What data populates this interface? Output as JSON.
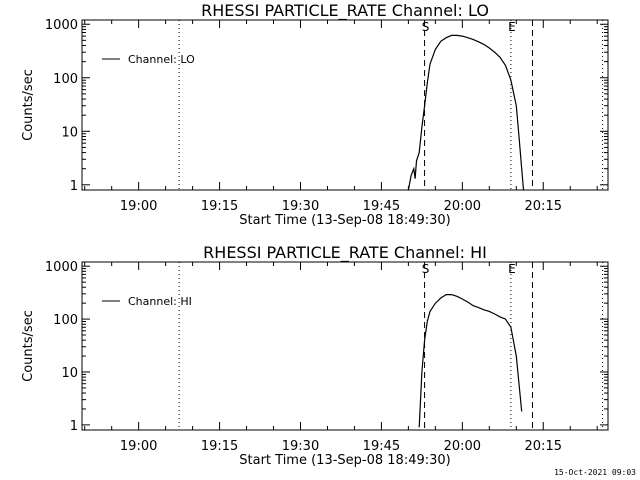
{
  "chart_data": [
    {
      "type": "line",
      "title": "RHESSI PARTICLE_RATE Channel: LO",
      "xlabel": "Start Time (13-Sep-08 18:49:30)",
      "ylabel": "Counts/sec",
      "yscale": "log",
      "xlim": [
        "18:49:30",
        "20:27:00"
      ],
      "ylim": [
        0.8,
        1200
      ],
      "x_ticks": [
        "19:00",
        "19:15",
        "19:30",
        "19:45",
        "20:00",
        "20:15"
      ],
      "y_ticks": [
        "1",
        "10",
        "100",
        "1000"
      ],
      "legend": {
        "position": "top-left",
        "label": "Channel: LO"
      },
      "markers": [
        {
          "label": "",
          "time": "19:07:30",
          "style": "dotted"
        },
        {
          "label": "S",
          "time": "19:53:00",
          "style": "dashed"
        },
        {
          "label": "E",
          "time": "20:09:00",
          "style": "dotted"
        },
        {
          "label": "",
          "time": "20:13:00",
          "style": "dashed"
        },
        {
          "label": "",
          "time": "20:26:00",
          "style": "dotted"
        }
      ],
      "series": [
        {
          "name": "Channel: LO",
          "x": [
            "19:50:00",
            "19:50:30",
            "19:51:00",
            "19:51:15",
            "19:51:30",
            "19:52:00",
            "19:52:30",
            "19:53:00",
            "19:53:30",
            "19:54:00",
            "19:55:00",
            "19:56:00",
            "19:57:00",
            "19:58:00",
            "19:59:00",
            "20:00:00",
            "20:01:00",
            "20:02:00",
            "20:03:00",
            "20:04:00",
            "20:05:00",
            "20:06:00",
            "20:07:00",
            "20:08:00",
            "20:09:00",
            "20:10:00",
            "20:10:30",
            "20:11:00",
            "20:11:20"
          ],
          "y": [
            0.8,
            1.5,
            2.0,
            1.3,
            2.8,
            4.0,
            12,
            30,
            80,
            180,
            340,
            480,
            560,
            620,
            620,
            600,
            560,
            520,
            470,
            420,
            360,
            300,
            240,
            170,
            90,
            30,
            8,
            2,
            0.8
          ]
        }
      ]
    },
    {
      "type": "line",
      "title": "RHESSI PARTICLE_RATE Channel: HI",
      "xlabel": "Start Time (13-Sep-08 18:49:30)",
      "ylabel": "Counts/sec",
      "yscale": "log",
      "xlim": [
        "18:49:30",
        "20:27:00"
      ],
      "ylim": [
        0.8,
        1200
      ],
      "x_ticks": [
        "19:00",
        "19:15",
        "19:30",
        "19:45",
        "20:00",
        "20:15"
      ],
      "y_ticks": [
        "1",
        "10",
        "100",
        "1000"
      ],
      "legend": {
        "position": "top-left",
        "label": "Channel: HI"
      },
      "markers": [
        {
          "label": "",
          "time": "19:07:30",
          "style": "dotted"
        },
        {
          "label": "S",
          "time": "19:53:00",
          "style": "dashed"
        },
        {
          "label": "E",
          "time": "20:09:00",
          "style": "dotted"
        },
        {
          "label": "",
          "time": "20:13:00",
          "style": "dashed"
        },
        {
          "label": "",
          "time": "20:26:00",
          "style": "dotted"
        }
      ],
      "series": [
        {
          "name": "Channel: HI",
          "x": [
            "19:52:00",
            "19:52:30",
            "19:53:00",
            "19:53:30",
            "19:54:00",
            "19:55:00",
            "19:56:00",
            "19:57:00",
            "19:58:00",
            "19:59:00",
            "20:00:00",
            "20:01:00",
            "20:02:00",
            "20:03:00",
            "20:04:00",
            "20:05:00",
            "20:06:00",
            "20:07:00",
            "20:08:00",
            "20:09:00",
            "20:10:00",
            "20:10:30",
            "20:11:00"
          ],
          "y": [
            0.9,
            10,
            40,
            90,
            140,
            200,
            250,
            290,
            290,
            270,
            240,
            210,
            180,
            165,
            150,
            140,
            125,
            110,
            100,
            70,
            20,
            6,
            1.8
          ]
        }
      ]
    }
  ],
  "footer": "15-Oct-2021 09:03"
}
